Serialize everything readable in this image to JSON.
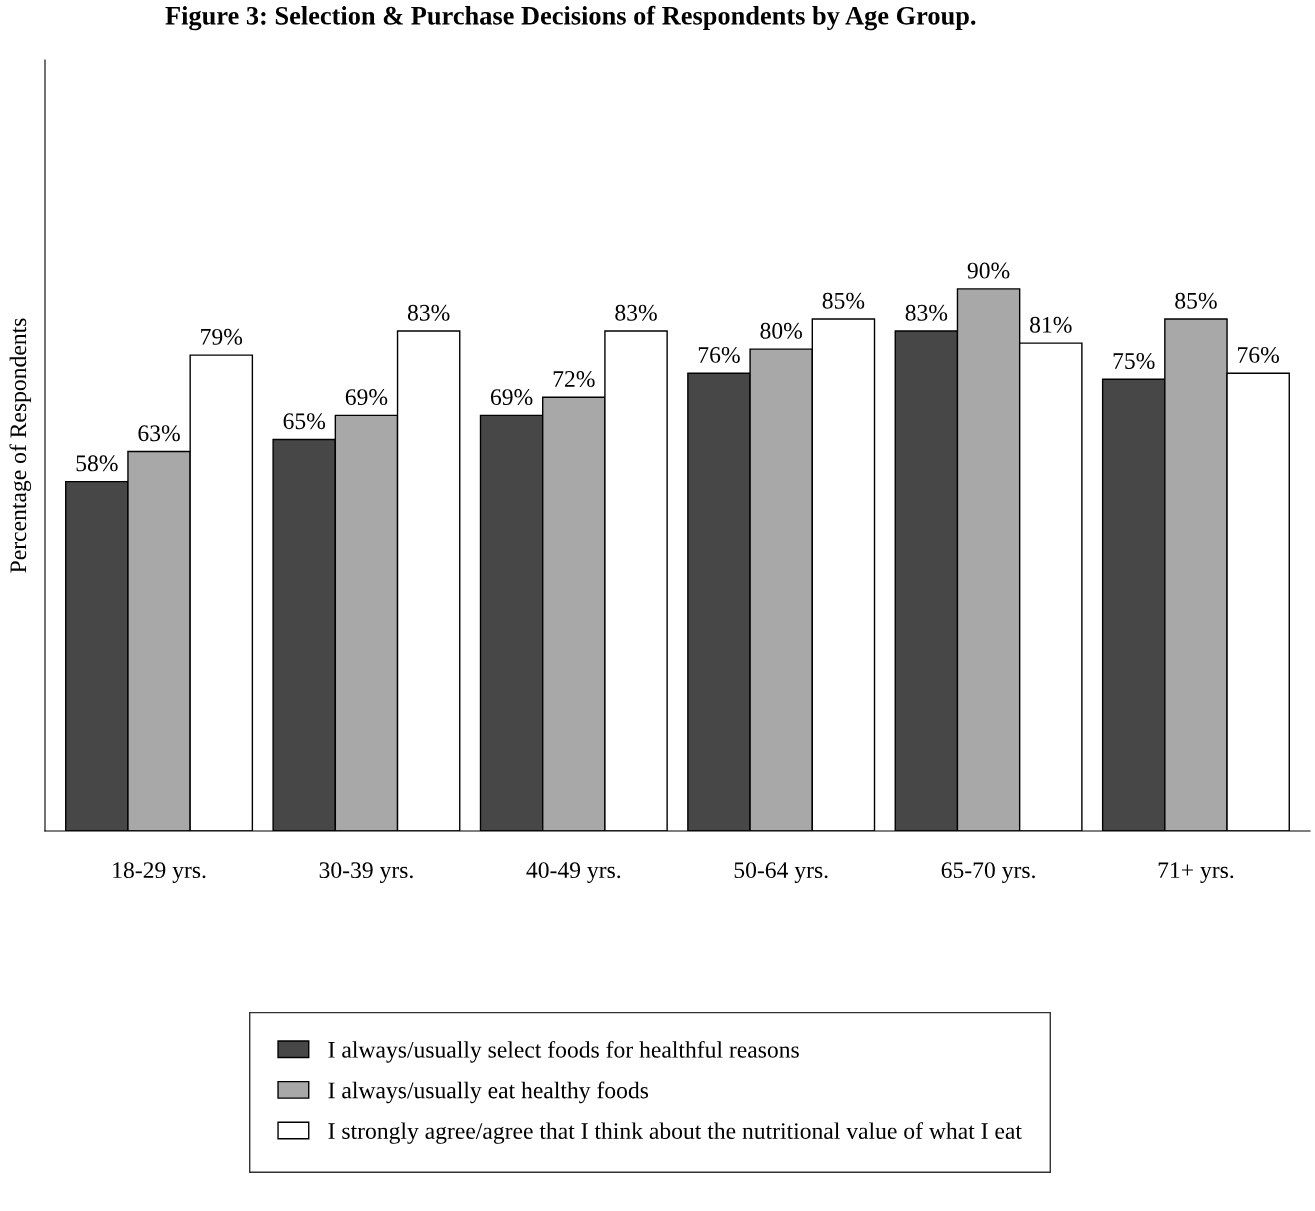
{
  "chart_data": {
    "type": "bar",
    "title": "Figure 3: Selection & Purchase Decisions of Respondents by Age Group.",
    "ylabel": "Percentage of Respondents",
    "categories": [
      "18-29 yrs.",
      "30-39 yrs.",
      "40-49 yrs.",
      "50-64 yrs.",
      "65-70 yrs.",
      "71+ yrs."
    ],
    "series": [
      {
        "name": "I always/usually select foods for healthful reasons",
        "color": "#474747",
        "values": [
          58,
          65,
          69,
          76,
          83,
          75
        ],
        "value_labels": [
          "58%",
          "65%",
          "69%",
          "76%",
          "83%",
          "75%"
        ]
      },
      {
        "name": "I always/usually eat healthy foods",
        "color": "#a8a8a8",
        "values": [
          63,
          69,
          72,
          80,
          90,
          85
        ],
        "value_labels": [
          "63%",
          "69%",
          "72%",
          "80%",
          "90%",
          "85%"
        ]
      },
      {
        "name": "I strongly agree/agree that I think about the nutritional value of what I eat",
        "color": "#ffffff",
        "values": [
          79,
          83,
          83,
          85,
          81,
          76
        ],
        "value_labels": [
          "79%",
          "83%",
          "83%",
          "85%",
          "81%",
          "76%"
        ]
      }
    ],
    "ylim": [
      0,
      128
    ],
    "tick_labels": "x",
    "grid": false,
    "legend": "bottom"
  }
}
